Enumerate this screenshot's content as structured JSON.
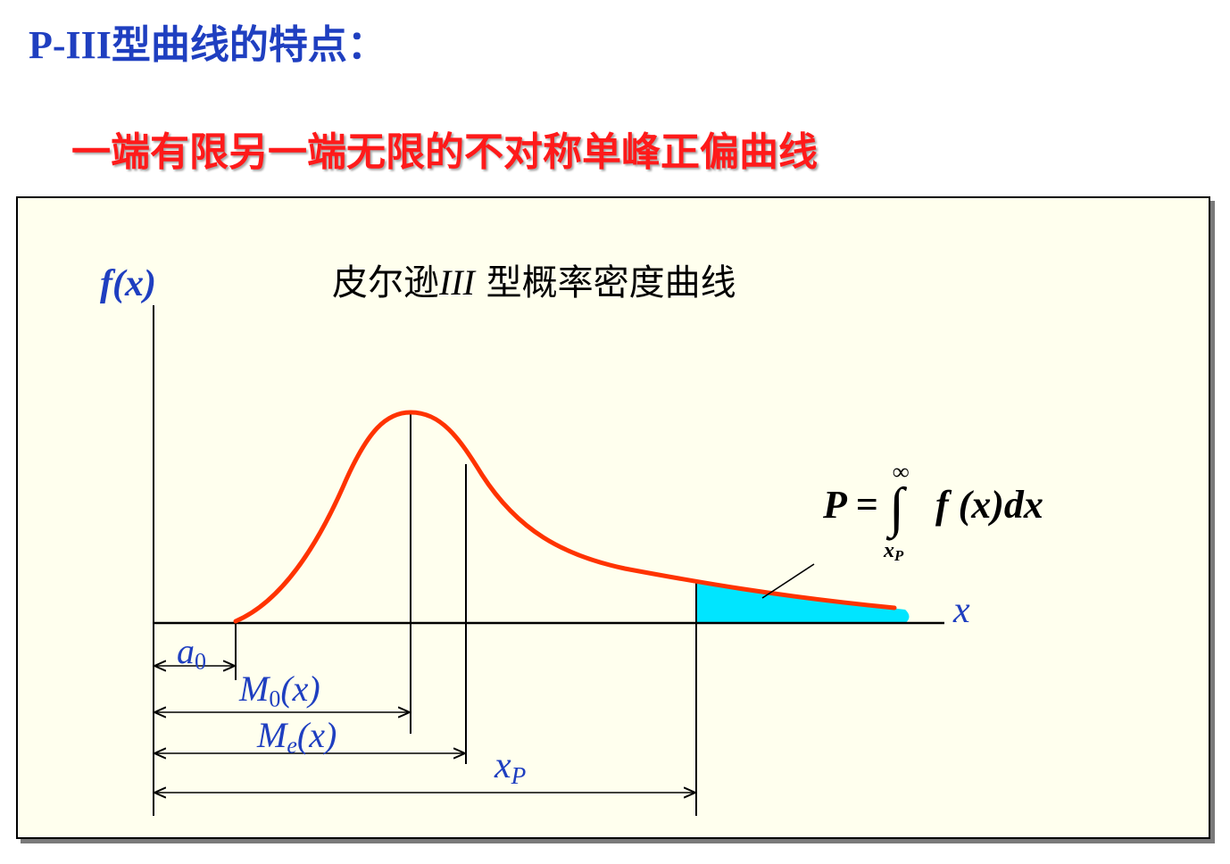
{
  "slide": {
    "title_latin": "P-III",
    "title_cn": "型曲线的特点：",
    "subtitle": "一端有限另一端无限的不对称单峰正偏曲线"
  },
  "diagram": {
    "title_pre": "皮尔逊",
    "title_roman": "III",
    "title_post": " 型概率密度曲线",
    "y_axis_label": "f(x)",
    "x_axis_label": "x",
    "labels": {
      "a0_main": "a",
      "a0_sub": "0",
      "m0_main": "M",
      "m0_sub": "0",
      "m0_tail": "(x)",
      "me_main": "M",
      "me_sub": "e",
      "me_tail": "(x)",
      "xp_main": "x",
      "xp_sub": "P"
    },
    "formula": {
      "lhs": "P",
      "eq": "=",
      "integral_sign": "∫",
      "upper": "∞",
      "lower_main": "x",
      "lower_sub": "P",
      "integrand": "f (x)dx"
    },
    "colors": {
      "curve": "#ff3300",
      "tail_fill": "#00e5ff",
      "label_blue": "#1f3fc0",
      "title_red": "#ff1a1a",
      "panel_bg": "#ffffee"
    }
  }
}
